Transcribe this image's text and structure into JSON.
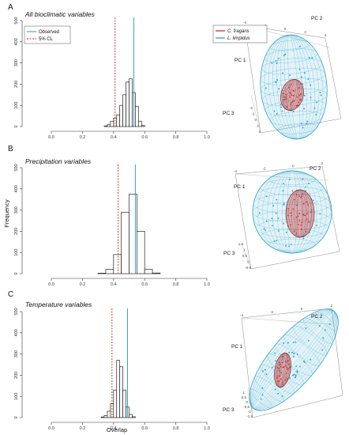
{
  "chart_data": [
    {
      "type": "bar",
      "panel": "A",
      "title": "All bioclimatic variables",
      "xlim": [
        0,
        1
      ],
      "ylim": [
        0,
        500
      ],
      "xticks": [
        "0.0",
        "0.2",
        "0.4",
        "0.6",
        "0.8",
        "1.0"
      ],
      "yticks": [
        "0",
        "100",
        "200",
        "300",
        "400",
        "500"
      ],
      "bin_width": 0.02,
      "bins_start": [
        0.34,
        0.36,
        0.38,
        0.4,
        0.42,
        0.44,
        0.46,
        0.48,
        0.5,
        0.52,
        0.54,
        0.56,
        0.58
      ],
      "values": [
        3,
        10,
        25,
        40,
        55,
        100,
        150,
        210,
        225,
        160,
        95,
        25,
        5
      ],
      "observed": 0.53,
      "cl5": 0.41,
      "legend": {
        "observed": "Observed",
        "cl5": "5% CL"
      }
    },
    {
      "type": "bar",
      "panel": "B",
      "title": "Precipitation variables",
      "xlim": [
        0,
        1
      ],
      "ylim": [
        0,
        500
      ],
      "xticks": [
        "0.0",
        "0.2",
        "0.4",
        "0.6",
        "0.8",
        "1.0"
      ],
      "yticks": [
        "0",
        "100",
        "200",
        "300",
        "400",
        "500"
      ],
      "ylabel": "Frequency",
      "bin_width": 0.05,
      "bins_start": [
        0.3,
        0.35,
        0.4,
        0.45,
        0.5,
        0.55,
        0.6,
        0.65
      ],
      "values": [
        2,
        20,
        90,
        290,
        375,
        200,
        20,
        3
      ],
      "observed": 0.54,
      "cl5": 0.43
    },
    {
      "type": "bar",
      "panel": "C",
      "title": "Temperature variables",
      "xlim": [
        0,
        1
      ],
      "ylim": [
        0,
        500
      ],
      "xticks": [
        "0.0",
        "0.2",
        "0.4",
        "0.6",
        "0.8",
        "1.0"
      ],
      "yticks": [
        "0",
        "100",
        "200",
        "300",
        "400",
        "500"
      ],
      "xlabel": "Overlap",
      "bin_width": 0.02,
      "bins_start": [
        0.32,
        0.34,
        0.36,
        0.38,
        0.4,
        0.42,
        0.44,
        0.46,
        0.48,
        0.5,
        0.52
      ],
      "values": [
        3,
        10,
        30,
        65,
        130,
        270,
        240,
        130,
        50,
        15,
        4
      ],
      "observed": 0.49,
      "cl5": 0.39
    }
  ],
  "scatter3d": {
    "legend": [
      "C. fragans",
      "L. limpidus"
    ],
    "colors": {
      "C. fragans": "#cc2222",
      "L. limpidus": "#1a9bc6"
    },
    "axes": [
      "PC 1",
      "PC 2",
      "PC 3"
    ],
    "panel_ticks": {
      "A": {
        "pc2": [
          "-4",
          "-2",
          "0",
          "2",
          "4"
        ],
        "pc3": [
          "-2",
          "-1",
          "0",
          "1",
          "2"
        ]
      },
      "B": {
        "pc2": [
          "-4",
          "-2",
          "0",
          "2"
        ],
        "pc3": [
          "1.5",
          "1",
          "0.5",
          "0",
          "-0.5"
        ]
      },
      "C": {
        "pc2": [
          "-4",
          "-2",
          "0",
          "2"
        ],
        "pc3": [
          "1",
          "0.5",
          "0",
          "-0.5",
          "-1",
          "-1.5"
        ]
      }
    }
  },
  "colors": {
    "observed": "#1a9bc6",
    "cl5": "#cc2222",
    "bar_stroke": "#222222"
  }
}
